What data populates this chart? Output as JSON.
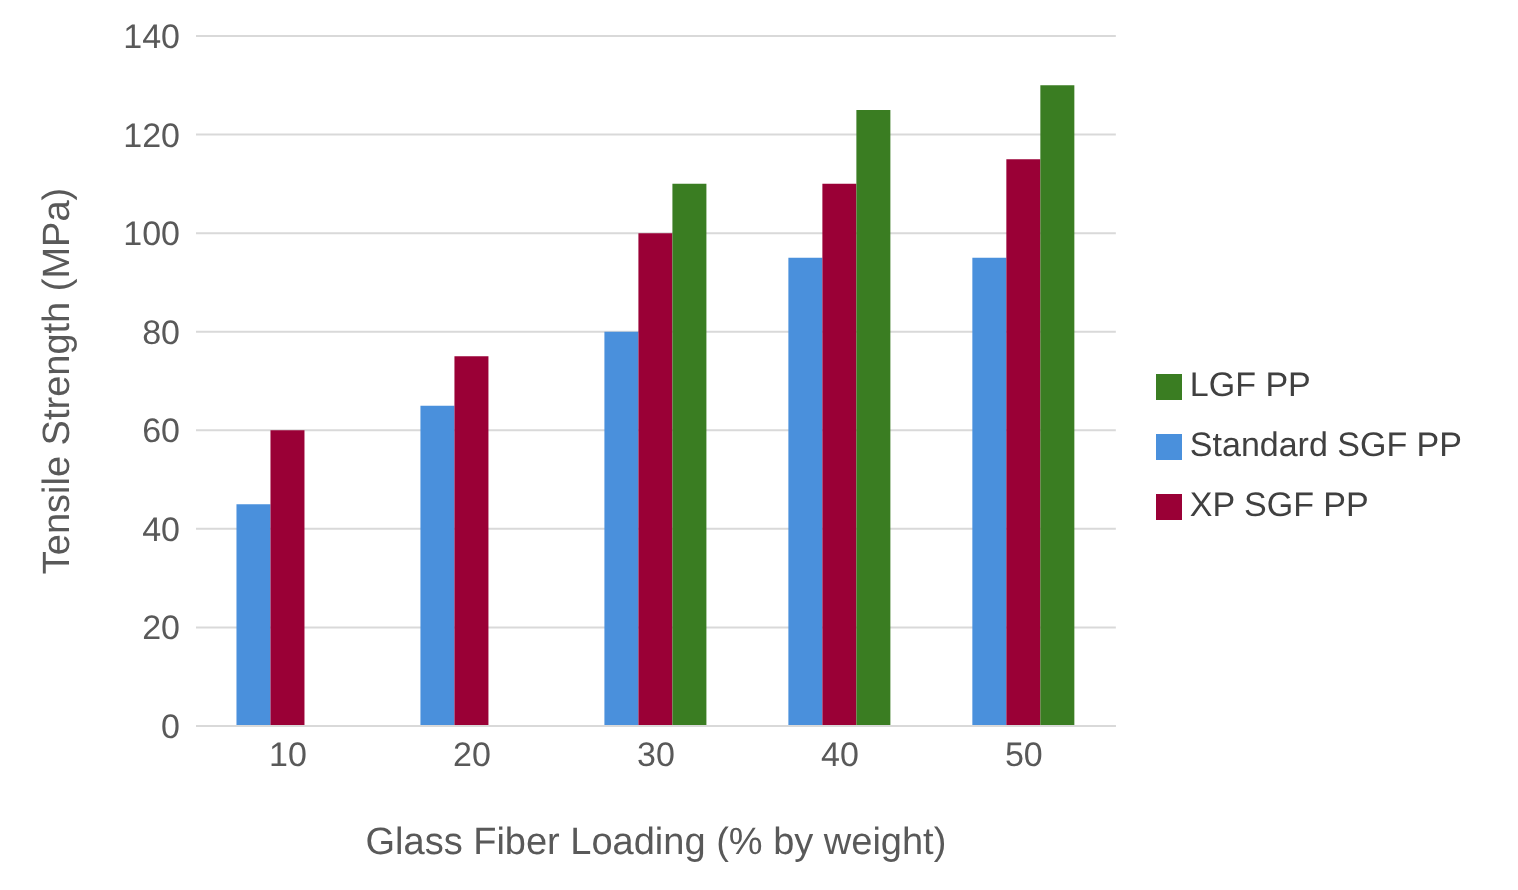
{
  "chart_data": {
    "type": "bar",
    "xlabel": "Glass Fiber Loading (% by weight)",
    "ylabel": "Tensile Strength (MPa)",
    "categories": [
      "10",
      "20",
      "30",
      "40",
      "50"
    ],
    "series": [
      {
        "name": "Standard SGF PP",
        "color": "#4a90dc",
        "values": [
          45,
          65,
          80,
          95,
          95
        ]
      },
      {
        "name": "XP SGF PP",
        "color": "#9a0036",
        "values": [
          60,
          75,
          100,
          110,
          115
        ]
      },
      {
        "name": "LGF PP",
        "color": "#3a7d22",
        "values": [
          null,
          null,
          110,
          125,
          130
        ]
      }
    ],
    "ylim": [
      0,
      140
    ],
    "yticks": [
      0,
      20,
      40,
      60,
      80,
      100,
      120,
      140
    ],
    "grid": "y",
    "legend": "right"
  }
}
